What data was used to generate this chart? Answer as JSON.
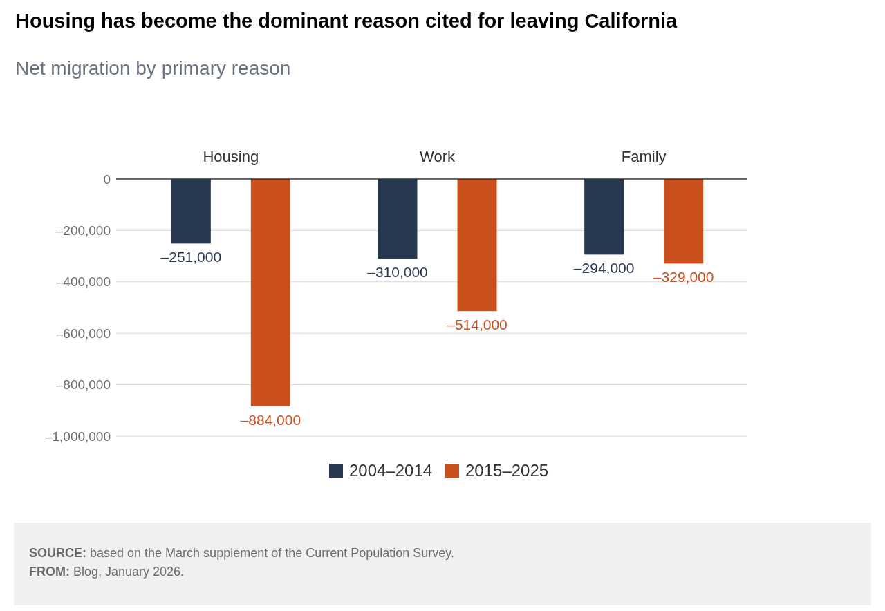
{
  "chart_data": {
    "type": "bar",
    "title": "Housing has become the dominant reason cited for leaving California",
    "subtitle": "Net migration by primary reason",
    "categories": [
      "Housing",
      "Work",
      "Family"
    ],
    "series": [
      {
        "name": "2004–2014",
        "color": "#283850",
        "values": [
          -251000,
          -310000,
          -294000
        ],
        "value_labels": [
          "–251,000",
          "–310,000",
          "–294,000"
        ]
      },
      {
        "name": "2015–2025",
        "color": "#c94f1c",
        "values": [
          -884000,
          -514000,
          -329000
        ],
        "value_labels": [
          "–884,000",
          "–514,000",
          "–329,000"
        ]
      }
    ],
    "ylim": [
      -1000000,
      0
    ],
    "yticks": [
      0,
      {
        "value": -200000,
        "label": "–200,000"
      },
      {
        "value": -400000,
        "label": "–400,000"
      },
      {
        "value": -600000,
        "label": "–600,000"
      },
      {
        "value": -800000,
        "label": "–800,000"
      },
      {
        "value": -1000000,
        "label": "–1,000,000"
      }
    ],
    "grid": "y",
    "legend": "bottom",
    "annotations": [
      "SOURCE: based on the March supplement of the Current Population Survey.",
      "FROM: Blog, January 2026."
    ]
  }
}
